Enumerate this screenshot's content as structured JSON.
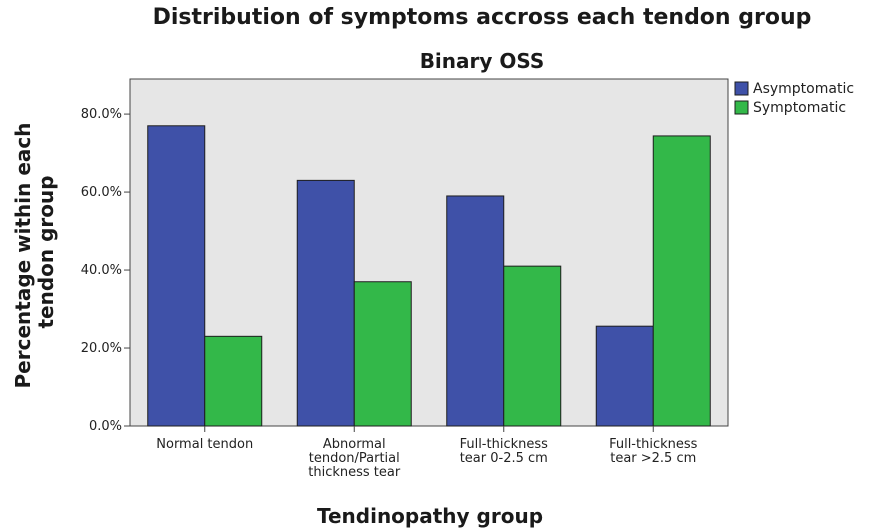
{
  "chart_data": {
    "type": "bar",
    "title": "Distribution of symptoms accross each tendon group",
    "subtitle": "Binary OSS",
    "xlabel": "Tendinopathy group",
    "ylabel_lines": [
      "Percentage within each",
      "tendon group"
    ],
    "categories": [
      [
        "Normal tendon"
      ],
      [
        "Abnormal",
        "tendon/Partial",
        "thickness tear"
      ],
      [
        "Full-thickness",
        "tear 0-2.5 cm"
      ],
      [
        "Full-thickness",
        "tear >2.5 cm"
      ]
    ],
    "series": [
      {
        "name": "Asymptomatic",
        "color": "#3f51a8",
        "values": [
          77.0,
          63.0,
          59.0,
          25.6
        ]
      },
      {
        "name": "Symptomatic",
        "color": "#33b849",
        "values": [
          23.0,
          37.0,
          41.0,
          74.4
        ]
      }
    ],
    "yticks": [
      "0.0%",
      "20.0%",
      "40.0%",
      "60.0%",
      "80.0%"
    ],
    "ytick_values": [
      0,
      20,
      40,
      60,
      80
    ],
    "ylim": [
      0,
      89
    ],
    "legend_position": "top-right",
    "plot_background": "#e6e6e6"
  }
}
